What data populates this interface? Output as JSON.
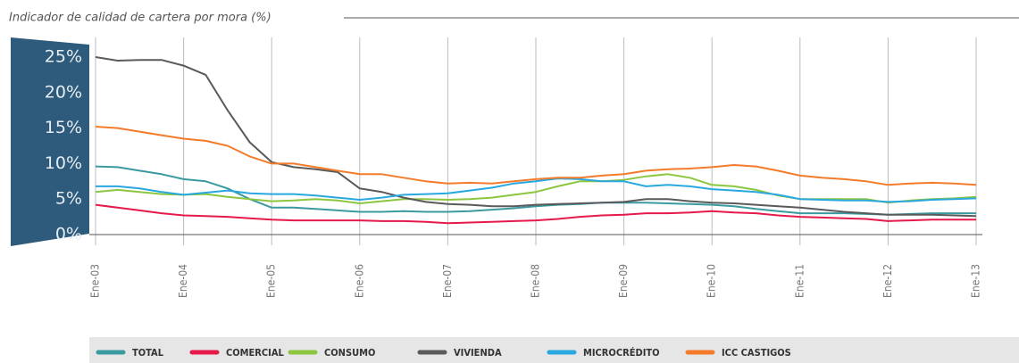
{
  "chart_data": {
    "type": "line",
    "title": "Indicador de calidad de cartera por mora (%)",
    "categories": [
      "Ene-03",
      null,
      null,
      null,
      "Ene-04",
      null,
      null,
      null,
      "Ene-05",
      null,
      null,
      null,
      "Ene-06",
      null,
      null,
      null,
      "Ene-07",
      null,
      null,
      null,
      "Ene-08",
      null,
      null,
      null,
      "Ene-09",
      null,
      null,
      null,
      "Ene-10",
      null,
      null,
      null,
      "Ene-11",
      null,
      null,
      null,
      "Ene-12",
      null,
      null,
      null,
      "Ene-13"
    ],
    "ylim": [
      0,
      25
    ],
    "yticks": [
      {
        "value": 0,
        "label": "0%"
      },
      {
        "value": 5,
        "label": "5%"
      },
      {
        "value": 10,
        "label": "10%"
      },
      {
        "value": 15,
        "label": "15%"
      },
      {
        "value": 20,
        "label": "20%"
      },
      {
        "value": 25,
        "label": "25%"
      }
    ],
    "grid": false,
    "legend": "bottom",
    "series": [
      {
        "name": "TOTAL",
        "color": "#3a9aa0",
        "values": [
          9.6,
          9.5,
          9,
          8.5,
          7.8,
          7.5,
          6.5,
          5,
          3.8,
          3.8,
          3.6,
          3.4,
          3.2,
          3.2,
          3.3,
          3.2,
          3.2,
          3.3,
          3.5,
          3.7,
          4,
          4.2,
          4.3,
          4.5,
          4.5,
          4.5,
          4.4,
          4.3,
          4.2,
          4,
          3.6,
          3.3,
          3,
          3,
          3,
          2.9,
          2.8,
          2.9,
          3,
          3,
          3
        ]
      },
      {
        "name": "COMERCIAL",
        "color": "#e5194a",
        "values": [
          4.2,
          3.8,
          3.4,
          3,
          2.7,
          2.6,
          2.5,
          2.3,
          2.1,
          2,
          2,
          2,
          2,
          1.9,
          1.9,
          1.8,
          1.6,
          1.7,
          1.8,
          1.9,
          2,
          2.2,
          2.5,
          2.7,
          2.8,
          3,
          3,
          3.1,
          3.3,
          3.1,
          3,
          2.7,
          2.5,
          2.4,
          2.3,
          2.2,
          1.9,
          2,
          2.1,
          2.1,
          2.1
        ]
      },
      {
        "name": "CONSUMO",
        "color": "#8cc63f",
        "values": [
          6,
          6.3,
          6,
          5.7,
          5.6,
          5.7,
          5.3,
          5,
          4.7,
          4.8,
          5,
          4.8,
          4.4,
          4.7,
          5,
          5,
          4.9,
          5,
          5.2,
          5.6,
          6,
          6.8,
          7.5,
          7.5,
          7.7,
          8.2,
          8.5,
          8,
          7,
          6.8,
          6.3,
          5.5,
          5,
          5,
          5,
          5,
          4.5,
          4.8,
          5,
          5.1,
          5.3
        ]
      },
      {
        "name": "VIVIENDA",
        "color": "#5a5a5a",
        "values": [
          25,
          24.5,
          24.6,
          24.6,
          23.8,
          22.5,
          17.5,
          13,
          10.2,
          9.5,
          9.2,
          8.8,
          6.5,
          6,
          5.2,
          4.6,
          4.3,
          4.2,
          4,
          4,
          4.2,
          4.3,
          4.4,
          4.5,
          4.6,
          5,
          5,
          4.7,
          4.5,
          4.4,
          4.2,
          4,
          3.8,
          3.5,
          3.2,
          3,
          2.8,
          2.8,
          2.8,
          2.7,
          2.6
        ]
      },
      {
        "name": "MICROCRÉDITO",
        "color": "#29a8e0",
        "values": [
          6.8,
          6.8,
          6.5,
          6,
          5.6,
          5.9,
          6.2,
          5.8,
          5.7,
          5.7,
          5.5,
          5.2,
          4.9,
          5.2,
          5.6,
          5.7,
          5.8,
          6.2,
          6.6,
          7.2,
          7.5,
          7.9,
          7.8,
          7.5,
          7.5,
          6.8,
          7,
          6.8,
          6.4,
          6.2,
          6,
          5.6,
          5,
          4.9,
          4.8,
          4.8,
          4.6,
          4.7,
          4.9,
          5,
          5.1
        ]
      },
      {
        "name": "ICC CASTIGOS",
        "color": "#f37b2a",
        "values": [
          15.2,
          15,
          14.5,
          14,
          13.5,
          13.2,
          12.5,
          11,
          10,
          10,
          9.5,
          9,
          8.5,
          8.5,
          8,
          7.5,
          7.2,
          7.3,
          7.2,
          7.5,
          7.8,
          8,
          8,
          8.3,
          8.5,
          9,
          9.2,
          9.3,
          9.5,
          9.8,
          9.6,
          9,
          8.3,
          8,
          7.8,
          7.5,
          7,
          7.2,
          7.3,
          7.2,
          7
        ]
      }
    ]
  }
}
